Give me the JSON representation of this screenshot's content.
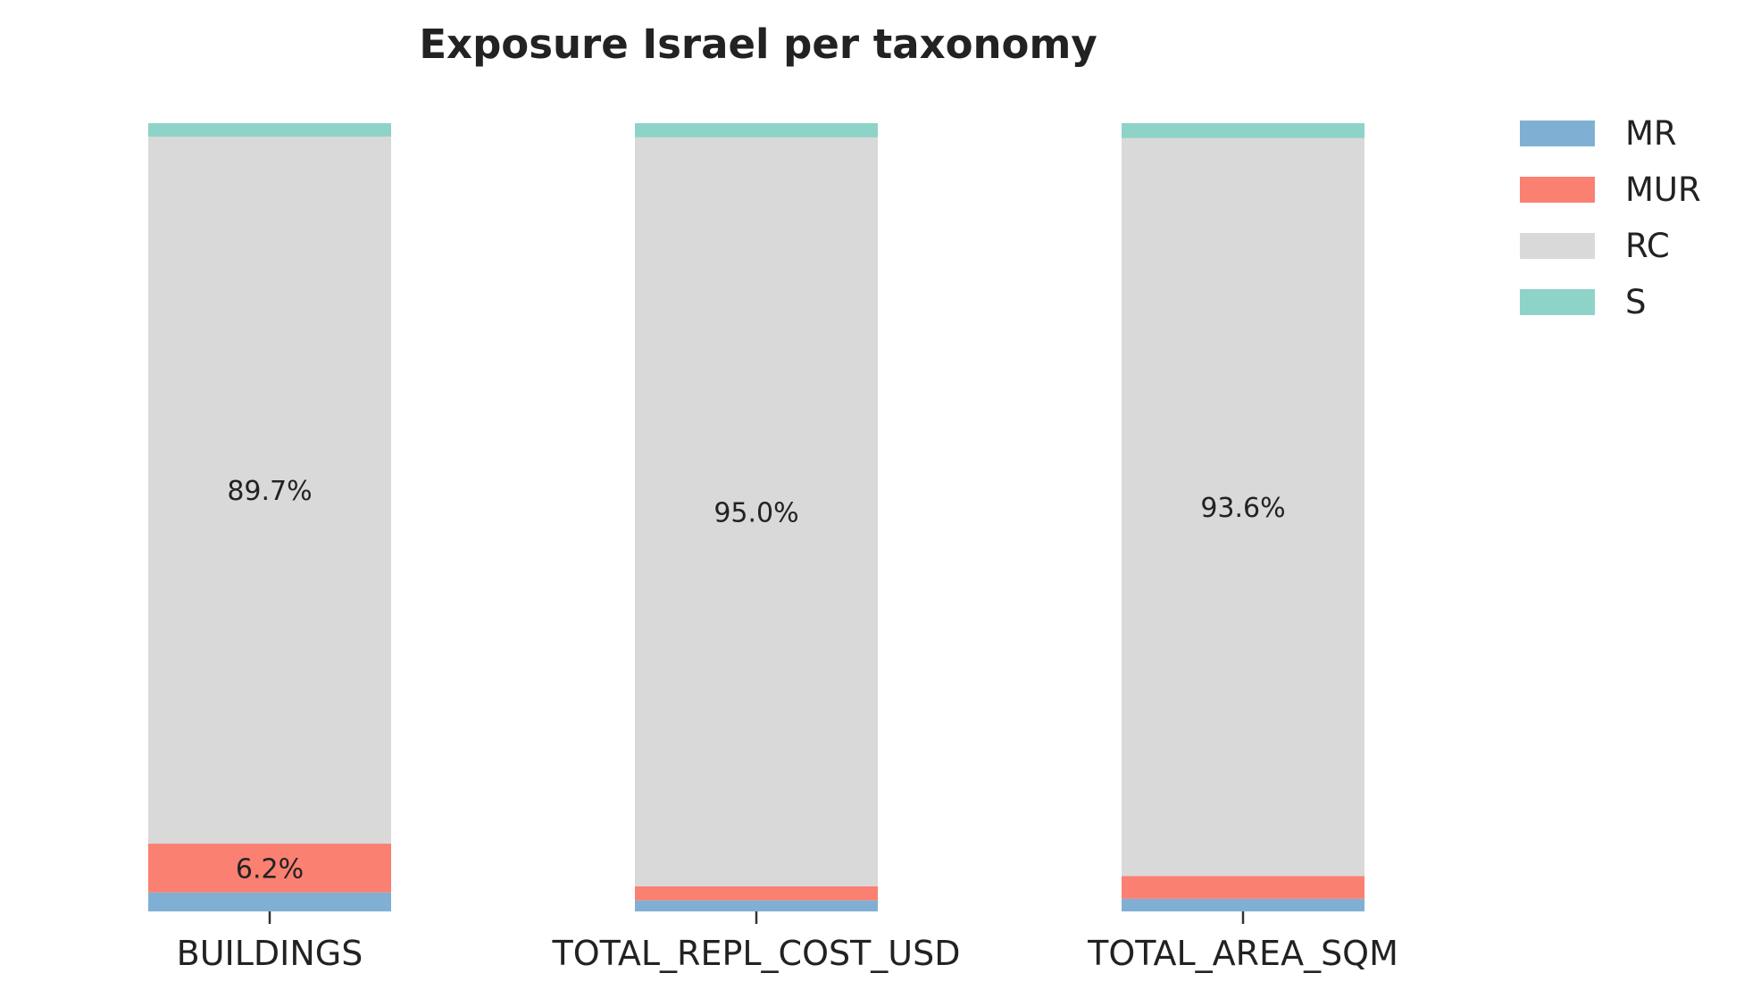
{
  "chart_data": {
    "type": "bar",
    "stacked": true,
    "percent": true,
    "title": "Exposure Israel per taxonomy",
    "xlabel": "",
    "ylabel": "",
    "categories": [
      "BUILDINGS",
      "TOTAL_REPL_COST_USD",
      "TOTAL_AREA_SQM"
    ],
    "ylim": [
      0,
      100
    ],
    "grid": false,
    "legend_position": "top-right",
    "series": [
      {
        "name": "MR",
        "color": "#7fb0d4",
        "values": [
          2.4,
          1.4,
          1.6
        ]
      },
      {
        "name": "MUR",
        "color": "#fa8072",
        "values": [
          6.2,
          1.8,
          2.9
        ]
      },
      {
        "name": "RC",
        "color": "#d9d9d9",
        "values": [
          89.7,
          95.0,
          93.6
        ]
      },
      {
        "name": "S",
        "color": "#8dd3c7",
        "values": [
          1.7,
          1.8,
          1.9
        ]
      }
    ],
    "data_labels": [
      {
        "category_index": 0,
        "series_index": 1,
        "text": "6.2%"
      },
      {
        "category_index": 0,
        "series_index": 2,
        "text": "89.7%"
      },
      {
        "category_index": 1,
        "series_index": 2,
        "text": "95.0%"
      },
      {
        "category_index": 2,
        "series_index": 2,
        "text": "93.6%"
      }
    ]
  }
}
